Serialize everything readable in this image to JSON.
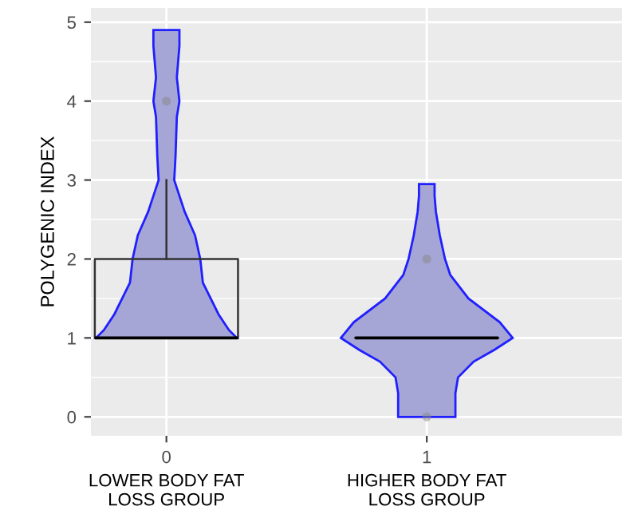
{
  "chart_data": {
    "type": "box",
    "ylabel": "POLYGENIC INDEX",
    "categories": [
      "0",
      "1"
    ],
    "boxes": [
      {
        "low": 1,
        "q1": 1,
        "median": 1,
        "q3": 2,
        "high": 3,
        "outliers": [
          4
        ]
      },
      {
        "low": 1,
        "q1": 1,
        "median": 1,
        "q3": 1,
        "high": 1,
        "outliers": [
          0,
          2
        ]
      }
    ],
    "annotations": [
      "LOWER BODY FAT\nLOSS GROUP",
      "HIGHER BODY FAT\nLOSS GROUP"
    ],
    "ylim": [
      -0.24,
      5.18
    ],
    "yticks": [
      0,
      1,
      2,
      3,
      4,
      5
    ],
    "grid": true
  }
}
